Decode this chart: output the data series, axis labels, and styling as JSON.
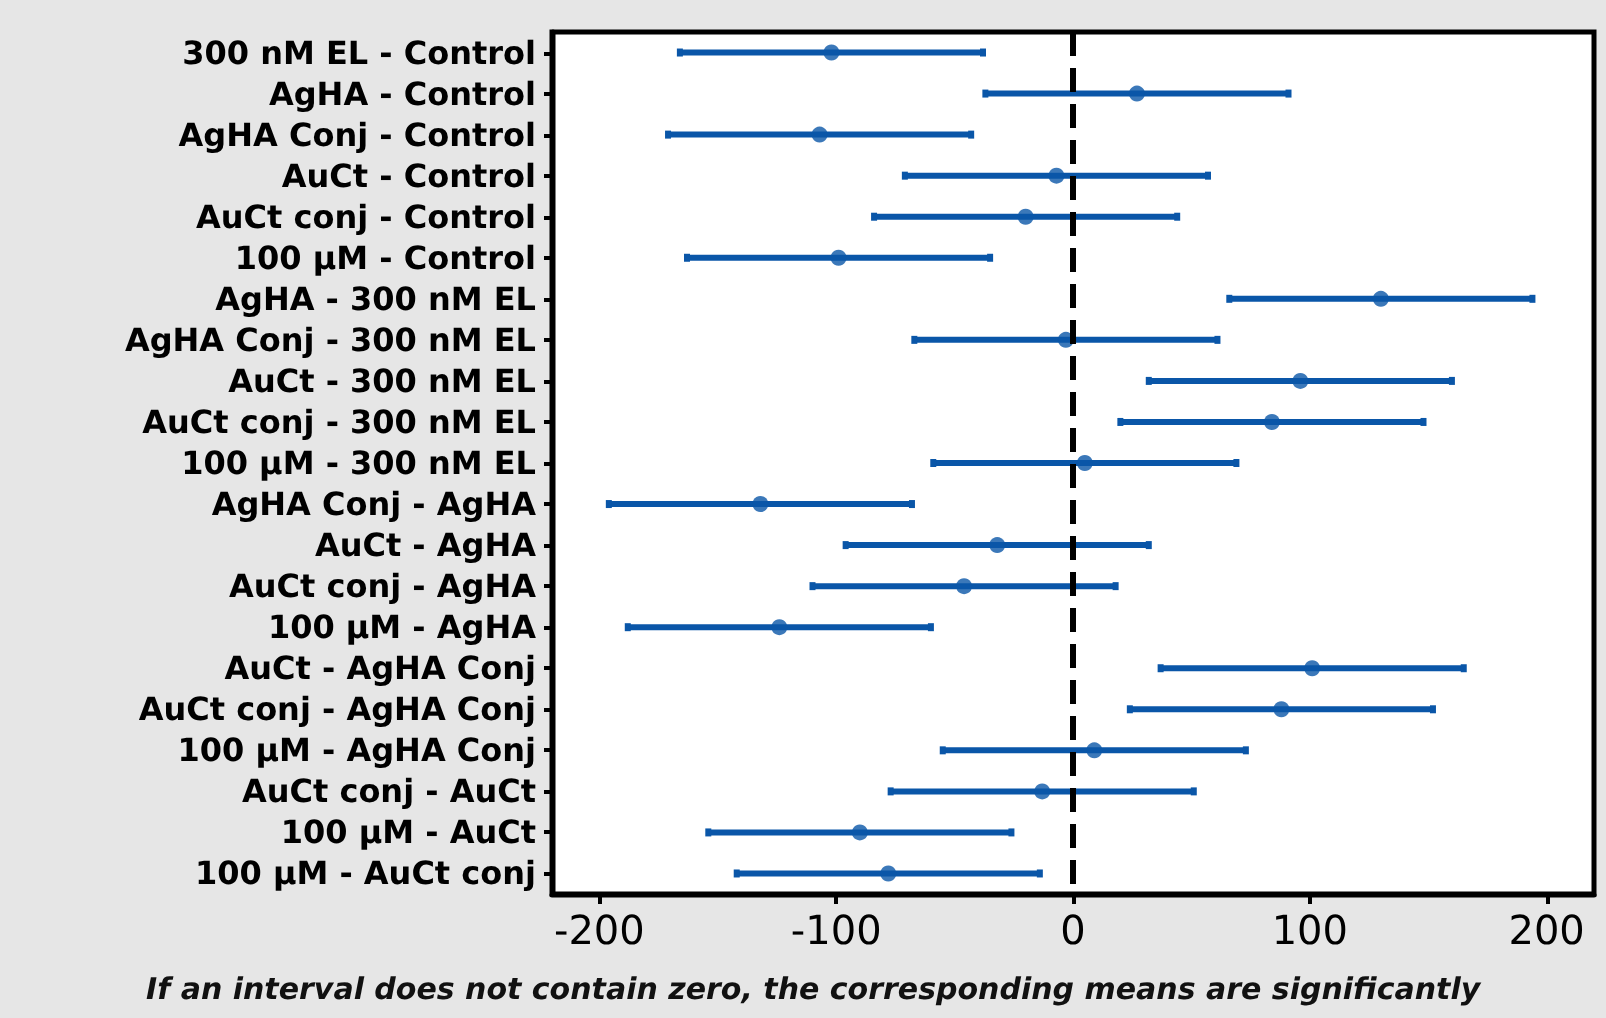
{
  "chart_data": {
    "type": "scatter",
    "orientation": "horizontal",
    "categories": [
      "300 nM EL - Control",
      "AgHA - Control",
      "AgHA Conj - Control",
      "AuCt - Control",
      "AuCt conj - Control",
      "100 µM - Control",
      "AgHA - 300 nM EL",
      "AgHA Conj - 300 nM EL",
      "AuCt - 300 nM EL",
      "AuCt conj - 300 nM EL",
      "100 µM - 300 nM EL",
      "AgHA Conj - AgHA",
      "AuCt - AgHA",
      "AuCt conj - AgHA",
      "100 µM - AgHA",
      "AuCt - AgHA Conj",
      "AuCt conj - AgHA Conj",
      "100 µM - AgHA Conj",
      "AuCt conj - AuCt",
      "100 µM - AuCt",
      "100 µM - AuCt conj"
    ],
    "values": [
      -102,
      27,
      -107,
      -7,
      -20,
      -99,
      130,
      -3,
      96,
      84,
      5,
      -132,
      -32,
      -46,
      -124,
      101,
      88,
      9,
      -13,
      -90,
      -78
    ],
    "errors": [
      64,
      64,
      64,
      64,
      64,
      64,
      64,
      64,
      64,
      64,
      64,
      64,
      64,
      64,
      64,
      64,
      64,
      64,
      64,
      64,
      64
    ],
    "color": "#0a56a8",
    "marker": "circle",
    "xlim": [
      -220,
      220
    ],
    "xticks": [
      -200,
      -100,
      0,
      100,
      200
    ],
    "ref_lines": [
      {
        "axis": "x",
        "value": 0,
        "label": null,
        "color": "#000000",
        "line_style": "dashed"
      }
    ],
    "grid": false,
    "legend": false,
    "annotations": [
      "If an interval does not contain zero, the corresponding means are significantly"
    ]
  }
}
